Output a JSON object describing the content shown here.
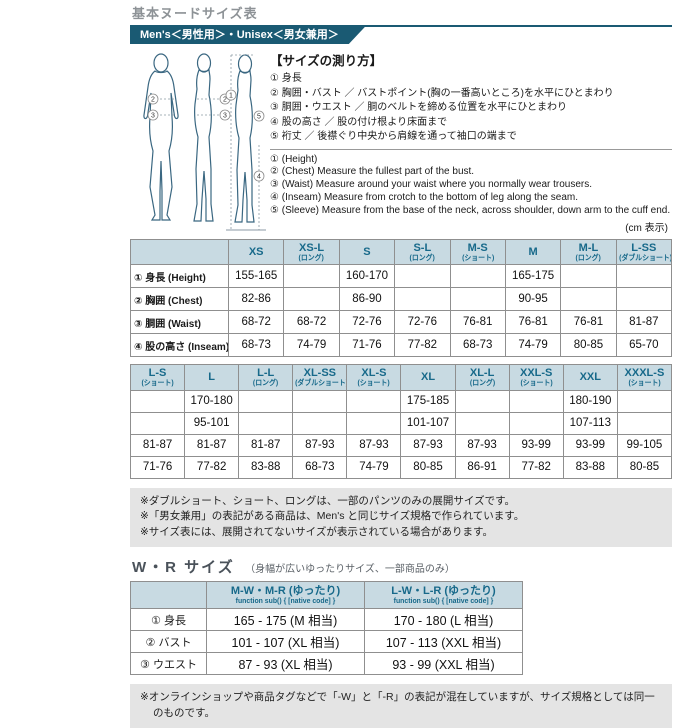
{
  "title": "基本ヌードサイズ表",
  "banner": "Men's＜男性用＞・Unisex＜男女兼用＞",
  "measure": {
    "heading": "【サイズの測り方】",
    "jp_items": [
      "① 身長",
      "② 胸囲・バスト ／ バストポイント(胸の一番高いところ)を水平にひとまわり",
      "③ 胴囲・ウエスト ／ 胴のベルトを締める位置を水平にひとまわり",
      "④ 股の高さ ／ 股の付け根より床面まで",
      "⑤ 裄丈 ／ 後襟ぐり中央から肩線を通って袖口の端まで"
    ],
    "en_items": [
      "① (Height)",
      "② (Chest) Measure the fullest part of the bust.",
      "③ (Waist) Measure around your waist where you normally wear trousers.",
      "④ (Inseam) Measure from crotch to the bottom of leg along the seam.",
      "⑤ (Sleeve) Measure from the base of the neck, across shoulder, down arm to the cuff end."
    ],
    "unit_note": "(cm 表示)"
  },
  "diagram": {
    "labels": [
      "1",
      "2",
      "3",
      "4",
      "5"
    ]
  },
  "table1": {
    "columns": [
      {
        "label": "XS",
        "sub": ""
      },
      {
        "label": "XS-L",
        "sub": "(ロング)"
      },
      {
        "label": "S",
        "sub": ""
      },
      {
        "label": "S-L",
        "sub": "(ロング)"
      },
      {
        "label": "M-S",
        "sub": "(ショート)"
      },
      {
        "label": "M",
        "sub": ""
      },
      {
        "label": "M-L",
        "sub": "(ロング)"
      },
      {
        "label": "L-SS",
        "sub": "(ダブルショート)"
      }
    ],
    "rows": [
      {
        "label": "① 身長 (Height)",
        "values": [
          "155-165",
          "",
          "160-170",
          "",
          "",
          "165-175",
          "",
          ""
        ]
      },
      {
        "label": "② 胸囲 (Chest)",
        "values": [
          "82-86",
          "",
          "86-90",
          "",
          "",
          "90-95",
          "",
          ""
        ]
      },
      {
        "label": "③ 胴囲 (Waist)",
        "values": [
          "68-72",
          "68-72",
          "72-76",
          "72-76",
          "76-81",
          "76-81",
          "76-81",
          "81-87"
        ]
      },
      {
        "label": "④ 股の高さ (Inseam)",
        "values": [
          "68-73",
          "74-79",
          "71-76",
          "77-82",
          "68-73",
          "74-79",
          "80-85",
          "65-70"
        ]
      }
    ]
  },
  "table2": {
    "columns": [
      {
        "label": "L-S",
        "sub": "(ショート)"
      },
      {
        "label": "L",
        "sub": ""
      },
      {
        "label": "L-L",
        "sub": "(ロング)"
      },
      {
        "label": "XL-SS",
        "sub": "(ダブルショート)"
      },
      {
        "label": "XL-S",
        "sub": "(ショート)"
      },
      {
        "label": "XL",
        "sub": ""
      },
      {
        "label": "XL-L",
        "sub": "(ロング)"
      },
      {
        "label": "XXL-S",
        "sub": "(ショート)"
      },
      {
        "label": "XXL",
        "sub": ""
      },
      {
        "label": "XXXL-S",
        "sub": "(ショート)"
      }
    ],
    "rows": [
      [
        "",
        "170-180",
        "",
        "",
        "",
        "175-185",
        "",
        "",
        "180-190",
        ""
      ],
      [
        "",
        "95-101",
        "",
        "",
        "",
        "101-107",
        "",
        "",
        "107-113",
        ""
      ],
      [
        "81-87",
        "81-87",
        "81-87",
        "87-93",
        "87-93",
        "87-93",
        "87-93",
        "93-99",
        "93-99",
        "99-105"
      ],
      [
        "71-76",
        "77-82",
        "83-88",
        "68-73",
        "74-79",
        "80-85",
        "86-91",
        "77-82",
        "83-88",
        "80-85"
      ]
    ]
  },
  "notes": [
    "※ダブルショート、ショート、ロングは、一部のパンツのみの展開サイズです。",
    "※「男女兼用」の表記がある商品は、Men's と同じサイズ規格で作られています。",
    "※サイズ表には、展開されてないサイズが表示されている場合があります。"
  ],
  "wr": {
    "heading": "W・R サイズ",
    "subheading": "（身幅が広いゆったりサイズ、一部商品のみ）",
    "columns": [
      "M-W・M-R (ゆったり)",
      "L-W・L-R (ゆったり)"
    ],
    "rows": [
      {
        "label": "① 身長",
        "values": [
          "165 - 175 (M 相当)",
          "170 - 180 (L 相当)"
        ]
      },
      {
        "label": "② バスト",
        "values": [
          "101 - 107 (XL 相当)",
          "107 - 113 (XXL 相当)"
        ]
      },
      {
        "label": "③ ウエスト",
        "values": [
          "87 - 93 (XL 相当)",
          "93 - 99 (XXL 相当)"
        ]
      }
    ],
    "note": "※オンラインショップや商品タグなどで「-W」と「-R」の表記が混在していますが、サイズ規格としては同一のものです。"
  },
  "colors": {
    "accent_teal": "#1a5a73",
    "header_text": "#17698a",
    "header_bg": "#c8dae2",
    "note_bg": "#e4e4e4"
  }
}
